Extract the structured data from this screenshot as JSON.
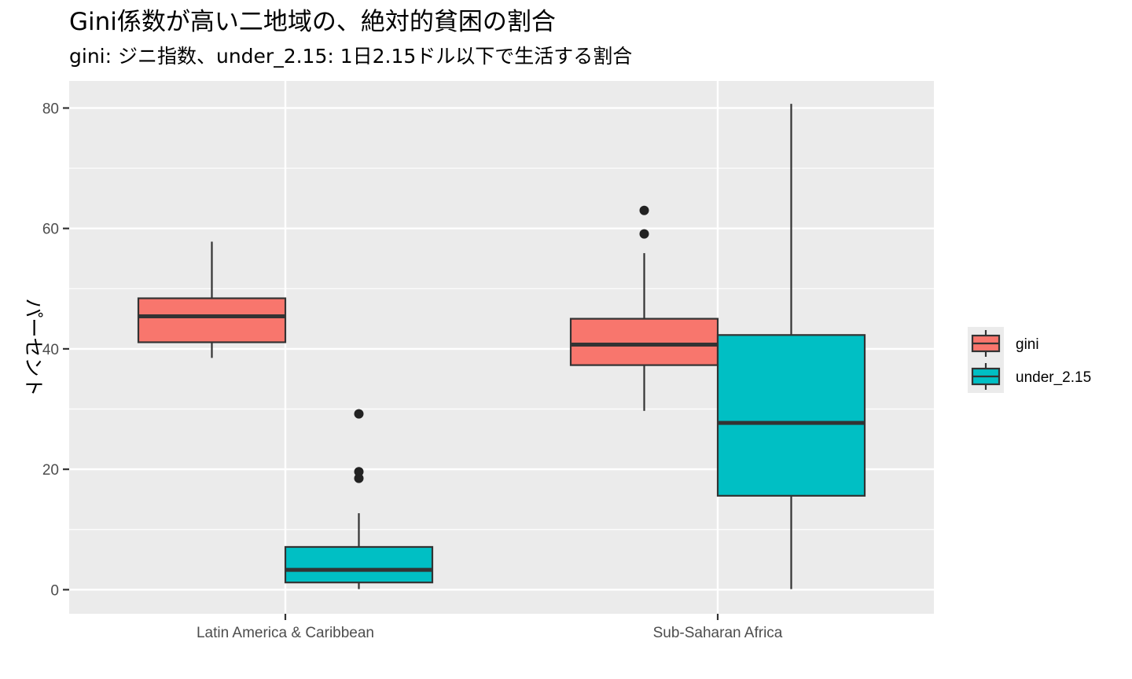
{
  "chart_data": {
    "type": "boxplot",
    "title": "Gini係数が高い二地域の、絶対的貧困の割合",
    "subtitle": "gini: ジニ指数、under_2.15: 1日2.15ドル以下で生活する割合",
    "xlabel": "",
    "ylabel": "パーセント",
    "categories": [
      "Latin America & Caribbean",
      "Sub-Saharan Africa"
    ],
    "ylim": [
      -4,
      84.5
    ],
    "yticks": [
      0,
      20,
      40,
      60,
      80
    ],
    "grid": true,
    "legend_position": "right",
    "series": [
      {
        "name": "gini",
        "color": "#F8766D",
        "boxes": [
          {
            "category": "Latin America & Caribbean",
            "whisker_low": 38.5,
            "q1": 41.1,
            "median": 45.4,
            "q3": 48.4,
            "whisker_high": 57.8,
            "outliers": []
          },
          {
            "category": "Sub-Saharan Africa",
            "whisker_low": 29.7,
            "q1": 37.3,
            "median": 40.7,
            "q3": 45.0,
            "whisker_high": 55.9,
            "outliers": [
              63.0,
              59.1
            ]
          }
        ]
      },
      {
        "name": "under_2.15",
        "color": "#00BFC4",
        "boxes": [
          {
            "category": "Latin America & Caribbean",
            "whisker_low": 0.1,
            "q1": 1.2,
            "median": 3.3,
            "q3": 7.1,
            "whisker_high": 12.7,
            "outliers": [
              29.2,
              19.6,
              18.5
            ]
          },
          {
            "category": "Sub-Saharan Africa",
            "whisker_low": 0.1,
            "q1": 15.6,
            "median": 27.7,
            "q3": 42.3,
            "whisker_high": 80.7,
            "outliers": []
          }
        ]
      }
    ]
  }
}
